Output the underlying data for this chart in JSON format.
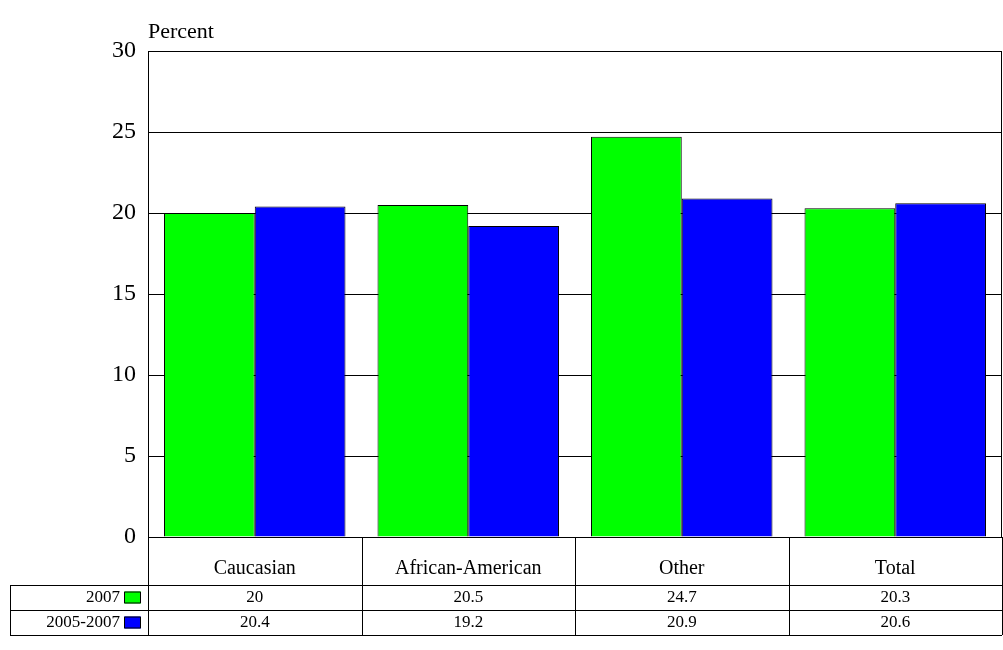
{
  "chart_data": {
    "type": "bar",
    "ylabel": "Percent",
    "categories": [
      "Caucasian",
      "African-American",
      "Other",
      "Total"
    ],
    "series": [
      {
        "name": "2007",
        "color": "#00ff00",
        "values": [
          20,
          20.5,
          24.7,
          20.3
        ]
      },
      {
        "name": "2005-2007",
        "color": "#0000ff",
        "values": [
          20.4,
          19.2,
          20.9,
          20.6
        ]
      }
    ],
    "ylim": [
      0,
      30
    ],
    "yticks": [
      0,
      5,
      10,
      15,
      20,
      25,
      30
    ],
    "grid": "y",
    "legend": "bottom left",
    "data_labels": true
  }
}
